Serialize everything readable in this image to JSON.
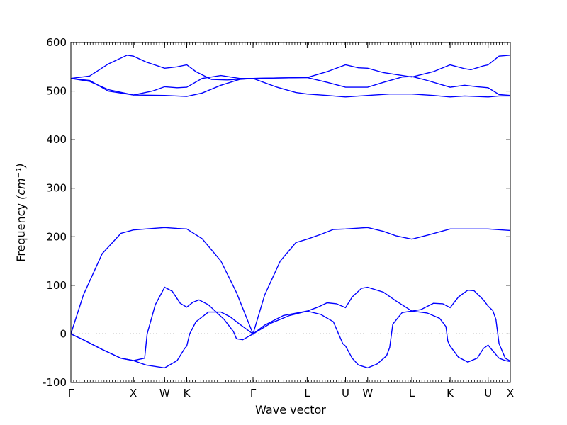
{
  "chart_data": {
    "type": "line",
    "xlabel": "Wave vector",
    "ylabel": "Frequency",
    "ylabel_unit": "(cm⁻¹)",
    "ylim": [
      -100,
      600
    ],
    "yticks": [
      -100,
      0,
      100,
      200,
      300,
      400,
      500,
      600
    ],
    "line_color": "#0000ff",
    "zero_reference_line": true,
    "x_labels": [
      {
        "label": "Γ",
        "x": 0.0
      },
      {
        "label": "X",
        "x": 1.0
      },
      {
        "label": "W",
        "x": 1.5
      },
      {
        "label": "K",
        "x": 1.854
      },
      {
        "label": "Γ",
        "x": 2.914
      },
      {
        "label": "L",
        "x": 3.78
      },
      {
        "label": "U",
        "x": 4.394
      },
      {
        "label": "W",
        "x": 4.748
      },
      {
        "label": "L",
        "x": 5.455
      },
      {
        "label": "K",
        "x": 6.067
      },
      {
        "label": "U",
        "x": 6.675
      },
      {
        "label": "X",
        "x": 7.03
      }
    ],
    "xlim": [
      0,
      7.03
    ],
    "series": [
      {
        "values": [
          [
            0,
            526
          ],
          [
            0.3,
            531
          ],
          [
            0.6,
            556
          ],
          [
            0.9,
            574
          ],
          [
            1.0,
            572
          ],
          [
            1.2,
            560
          ],
          [
            1.5,
            547
          ],
          [
            1.7,
            550
          ],
          [
            1.854,
            554
          ],
          [
            2.0,
            540
          ],
          [
            2.25,
            524
          ],
          [
            2.5,
            523
          ],
          [
            2.914,
            526
          ],
          [
            3.3,
            527
          ],
          [
            3.78,
            528
          ],
          [
            4.1,
            540
          ],
          [
            4.394,
            554
          ],
          [
            4.6,
            548
          ],
          [
            4.748,
            547
          ],
          [
            5.0,
            538
          ],
          [
            5.455,
            529
          ],
          [
            5.8,
            540
          ],
          [
            6.067,
            554
          ],
          [
            6.3,
            546
          ],
          [
            6.4,
            544
          ],
          [
            6.6,
            552
          ],
          [
            6.675,
            554
          ],
          [
            6.85,
            572
          ],
          [
            7.03,
            574
          ]
        ]
      },
      {
        "values": [
          [
            0,
            526
          ],
          [
            0.3,
            522
          ],
          [
            0.6,
            500
          ],
          [
            1.0,
            492
          ],
          [
            1.3,
            500
          ],
          [
            1.5,
            509
          ],
          [
            1.7,
            507
          ],
          [
            1.854,
            508
          ],
          [
            2.1,
            526
          ],
          [
            2.4,
            532
          ],
          [
            2.7,
            526
          ],
          [
            2.914,
            526
          ],
          [
            3.3,
            527
          ],
          [
            3.78,
            528
          ],
          [
            4.1,
            518
          ],
          [
            4.394,
            508
          ],
          [
            4.748,
            508
          ],
          [
            5.0,
            518
          ],
          [
            5.3,
            529
          ],
          [
            5.455,
            530
          ],
          [
            5.7,
            522
          ],
          [
            6.067,
            508
          ],
          [
            6.3,
            512
          ],
          [
            6.5,
            509
          ],
          [
            6.675,
            507
          ],
          [
            6.85,
            493
          ],
          [
            7.03,
            491
          ]
        ]
      },
      {
        "values": [
          [
            0,
            526
          ],
          [
            0.3,
            520
          ],
          [
            0.6,
            503
          ],
          [
            1.0,
            492
          ],
          [
            1.5,
            491
          ],
          [
            1.854,
            489
          ],
          [
            2.1,
            496
          ],
          [
            2.4,
            512
          ],
          [
            2.7,
            524
          ],
          [
            2.914,
            526
          ],
          [
            3.3,
            508
          ],
          [
            3.6,
            497
          ],
          [
            3.78,
            494
          ],
          [
            4.1,
            491
          ],
          [
            4.394,
            488
          ],
          [
            4.748,
            491
          ],
          [
            5.1,
            494
          ],
          [
            5.455,
            494
          ],
          [
            5.8,
            491
          ],
          [
            6.067,
            488
          ],
          [
            6.3,
            490
          ],
          [
            6.675,
            488
          ],
          [
            6.85,
            490
          ],
          [
            7.03,
            490
          ]
        ]
      },
      {
        "values": [
          [
            0,
            0
          ],
          [
            0.2,
            80
          ],
          [
            0.5,
            165
          ],
          [
            0.8,
            207
          ],
          [
            1.0,
            214
          ],
          [
            1.2,
            216
          ],
          [
            1.5,
            219
          ],
          [
            1.7,
            217
          ],
          [
            1.854,
            216
          ],
          [
            2.1,
            196
          ],
          [
            2.4,
            150
          ],
          [
            2.65,
            85
          ],
          [
            2.914,
            0
          ],
          [
            3.1,
            80
          ],
          [
            3.35,
            150
          ],
          [
            3.6,
            188
          ],
          [
            3.78,
            195
          ],
          [
            4.0,
            205
          ],
          [
            4.2,
            215
          ],
          [
            4.394,
            216
          ],
          [
            4.748,
            219
          ],
          [
            5.0,
            211
          ],
          [
            5.2,
            202
          ],
          [
            5.455,
            195
          ],
          [
            5.7,
            203
          ],
          [
            6.067,
            216
          ],
          [
            6.3,
            216
          ],
          [
            6.675,
            216
          ],
          [
            7.03,
            213
          ]
        ]
      },
      {
        "values": [
          [
            0,
            0
          ],
          [
            0.2,
            -12
          ],
          [
            0.5,
            -32
          ],
          [
            0.8,
            -50
          ],
          [
            1.0,
            -55
          ],
          [
            1.18,
            -50
          ],
          [
            1.22,
            0
          ],
          [
            1.35,
            60
          ],
          [
            1.5,
            96
          ],
          [
            1.62,
            88
          ],
          [
            1.75,
            63
          ],
          [
            1.854,
            55
          ],
          [
            1.95,
            65
          ],
          [
            2.05,
            70
          ],
          [
            2.2,
            60
          ],
          [
            2.45,
            30
          ],
          [
            2.6,
            5
          ],
          [
            2.65,
            -10
          ],
          [
            2.75,
            -12
          ],
          [
            2.914,
            0
          ],
          [
            3.1,
            18
          ],
          [
            3.4,
            38
          ],
          [
            3.78,
            47
          ],
          [
            3.95,
            55
          ],
          [
            4.1,
            64
          ],
          [
            4.25,
            62
          ],
          [
            4.394,
            54
          ],
          [
            4.5,
            76
          ],
          [
            4.65,
            94
          ],
          [
            4.748,
            96
          ],
          [
            5.0,
            86
          ],
          [
            5.2,
            68
          ],
          [
            5.455,
            47
          ],
          [
            5.6,
            50
          ],
          [
            5.8,
            63
          ],
          [
            5.95,
            62
          ],
          [
            6.067,
            54
          ],
          [
            6.2,
            76
          ],
          [
            6.35,
            90
          ],
          [
            6.45,
            89
          ],
          [
            6.6,
            70
          ],
          [
            6.675,
            57
          ],
          [
            6.75,
            48
          ],
          [
            6.8,
            30
          ],
          [
            6.85,
            -20
          ],
          [
            6.95,
            -50
          ],
          [
            7.03,
            -56
          ]
        ]
      },
      {
        "values": [
          [
            0,
            0
          ],
          [
            0.2,
            -12
          ],
          [
            0.5,
            -32
          ],
          [
            0.8,
            -50
          ],
          [
            1.0,
            -55
          ],
          [
            1.2,
            -64
          ],
          [
            1.5,
            -70
          ],
          [
            1.7,
            -55
          ],
          [
            1.82,
            -30
          ],
          [
            1.854,
            -25
          ],
          [
            1.9,
            0
          ],
          [
            2.0,
            25
          ],
          [
            2.2,
            45
          ],
          [
            2.4,
            45
          ],
          [
            2.55,
            35
          ],
          [
            2.7,
            20
          ],
          [
            2.914,
            0
          ],
          [
            3.2,
            22
          ],
          [
            3.5,
            38
          ],
          [
            3.78,
            47
          ],
          [
            4.0,
            40
          ],
          [
            4.2,
            25
          ],
          [
            4.3,
            -5
          ],
          [
            4.35,
            -20
          ],
          [
            4.394,
            -25
          ],
          [
            4.5,
            -50
          ],
          [
            4.6,
            -64
          ],
          [
            4.748,
            -70
          ],
          [
            4.9,
            -62
          ],
          [
            5.05,
            -45
          ],
          [
            5.1,
            -28
          ],
          [
            5.15,
            20
          ],
          [
            5.3,
            44
          ],
          [
            5.455,
            47
          ],
          [
            5.7,
            43
          ],
          [
            5.9,
            32
          ],
          [
            6.0,
            15
          ],
          [
            6.03,
            -15
          ],
          [
            6.067,
            -25
          ],
          [
            6.2,
            -48
          ],
          [
            6.35,
            -58
          ],
          [
            6.5,
            -50
          ],
          [
            6.6,
            -30
          ],
          [
            6.675,
            -23
          ],
          [
            6.75,
            -35
          ],
          [
            6.85,
            -50
          ],
          [
            6.95,
            -55
          ],
          [
            7.03,
            -57
          ]
        ]
      }
    ]
  }
}
